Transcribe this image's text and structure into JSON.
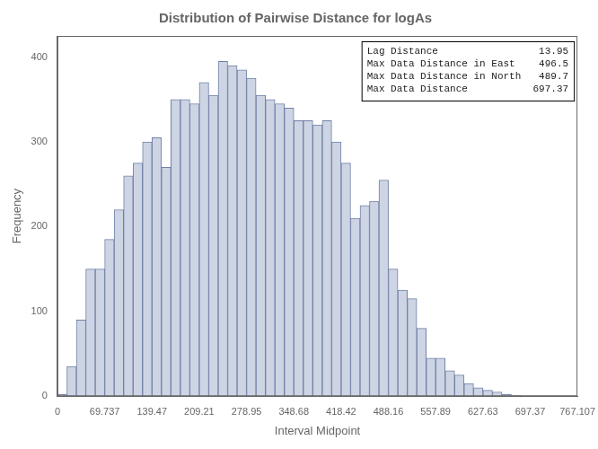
{
  "chart_data": {
    "type": "histogram",
    "title": "Distribution of Pairwise Distance for logAs",
    "xlabel": "Interval Midpoint",
    "ylabel": "Frequency",
    "bins": [
      0,
      13.95,
      27.9,
      41.85,
      55.8,
      69.75,
      83.7,
      97.65,
      111.6,
      125.55,
      139.5,
      153.45,
      167.4,
      181.35,
      195.3,
      209.25,
      223.2,
      237.15,
      251.1,
      265.05,
      279,
      292.95,
      306.9,
      320.85,
      334.8,
      348.75,
      362.7,
      376.65,
      390.6,
      404.55,
      418.5,
      432.45,
      446.4,
      460.35,
      474.3,
      488.25,
      502.2,
      516.15,
      530.1,
      544.05,
      558,
      571.95,
      585.9,
      599.85,
      613.8,
      627.75,
      641.7,
      655.65,
      669.6,
      683.55,
      697.5
    ],
    "values": [
      2,
      35,
      90,
      150,
      150,
      185,
      220,
      260,
      275,
      300,
      305,
      270,
      350,
      350,
      345,
      370,
      355,
      395,
      390,
      385,
      375,
      355,
      350,
      345,
      340,
      325,
      325,
      320,
      325,
      300,
      275,
      210,
      225,
      230,
      255,
      150,
      125,
      115,
      80,
      45,
      45,
      30,
      25,
      15,
      10,
      7,
      5,
      2,
      1,
      0
    ],
    "color": "#cdd4e3",
    "xlim": [
      0,
      767.107
    ],
    "xticks": [
      0,
      69.737,
      139.47,
      209.21,
      278.95,
      348.68,
      418.42,
      488.16,
      557.89,
      627.63,
      697.37,
      767.107
    ],
    "ylim": [
      0,
      425
    ],
    "yticks": [
      0,
      100,
      200,
      300,
      400
    ],
    "grid": false,
    "annotations": [
      "Lag Distance                 13.95",
      "Max Data Distance in East    496.5",
      "Max Data Distance in North   489.7",
      "Max Data Distance           697.37"
    ]
  }
}
